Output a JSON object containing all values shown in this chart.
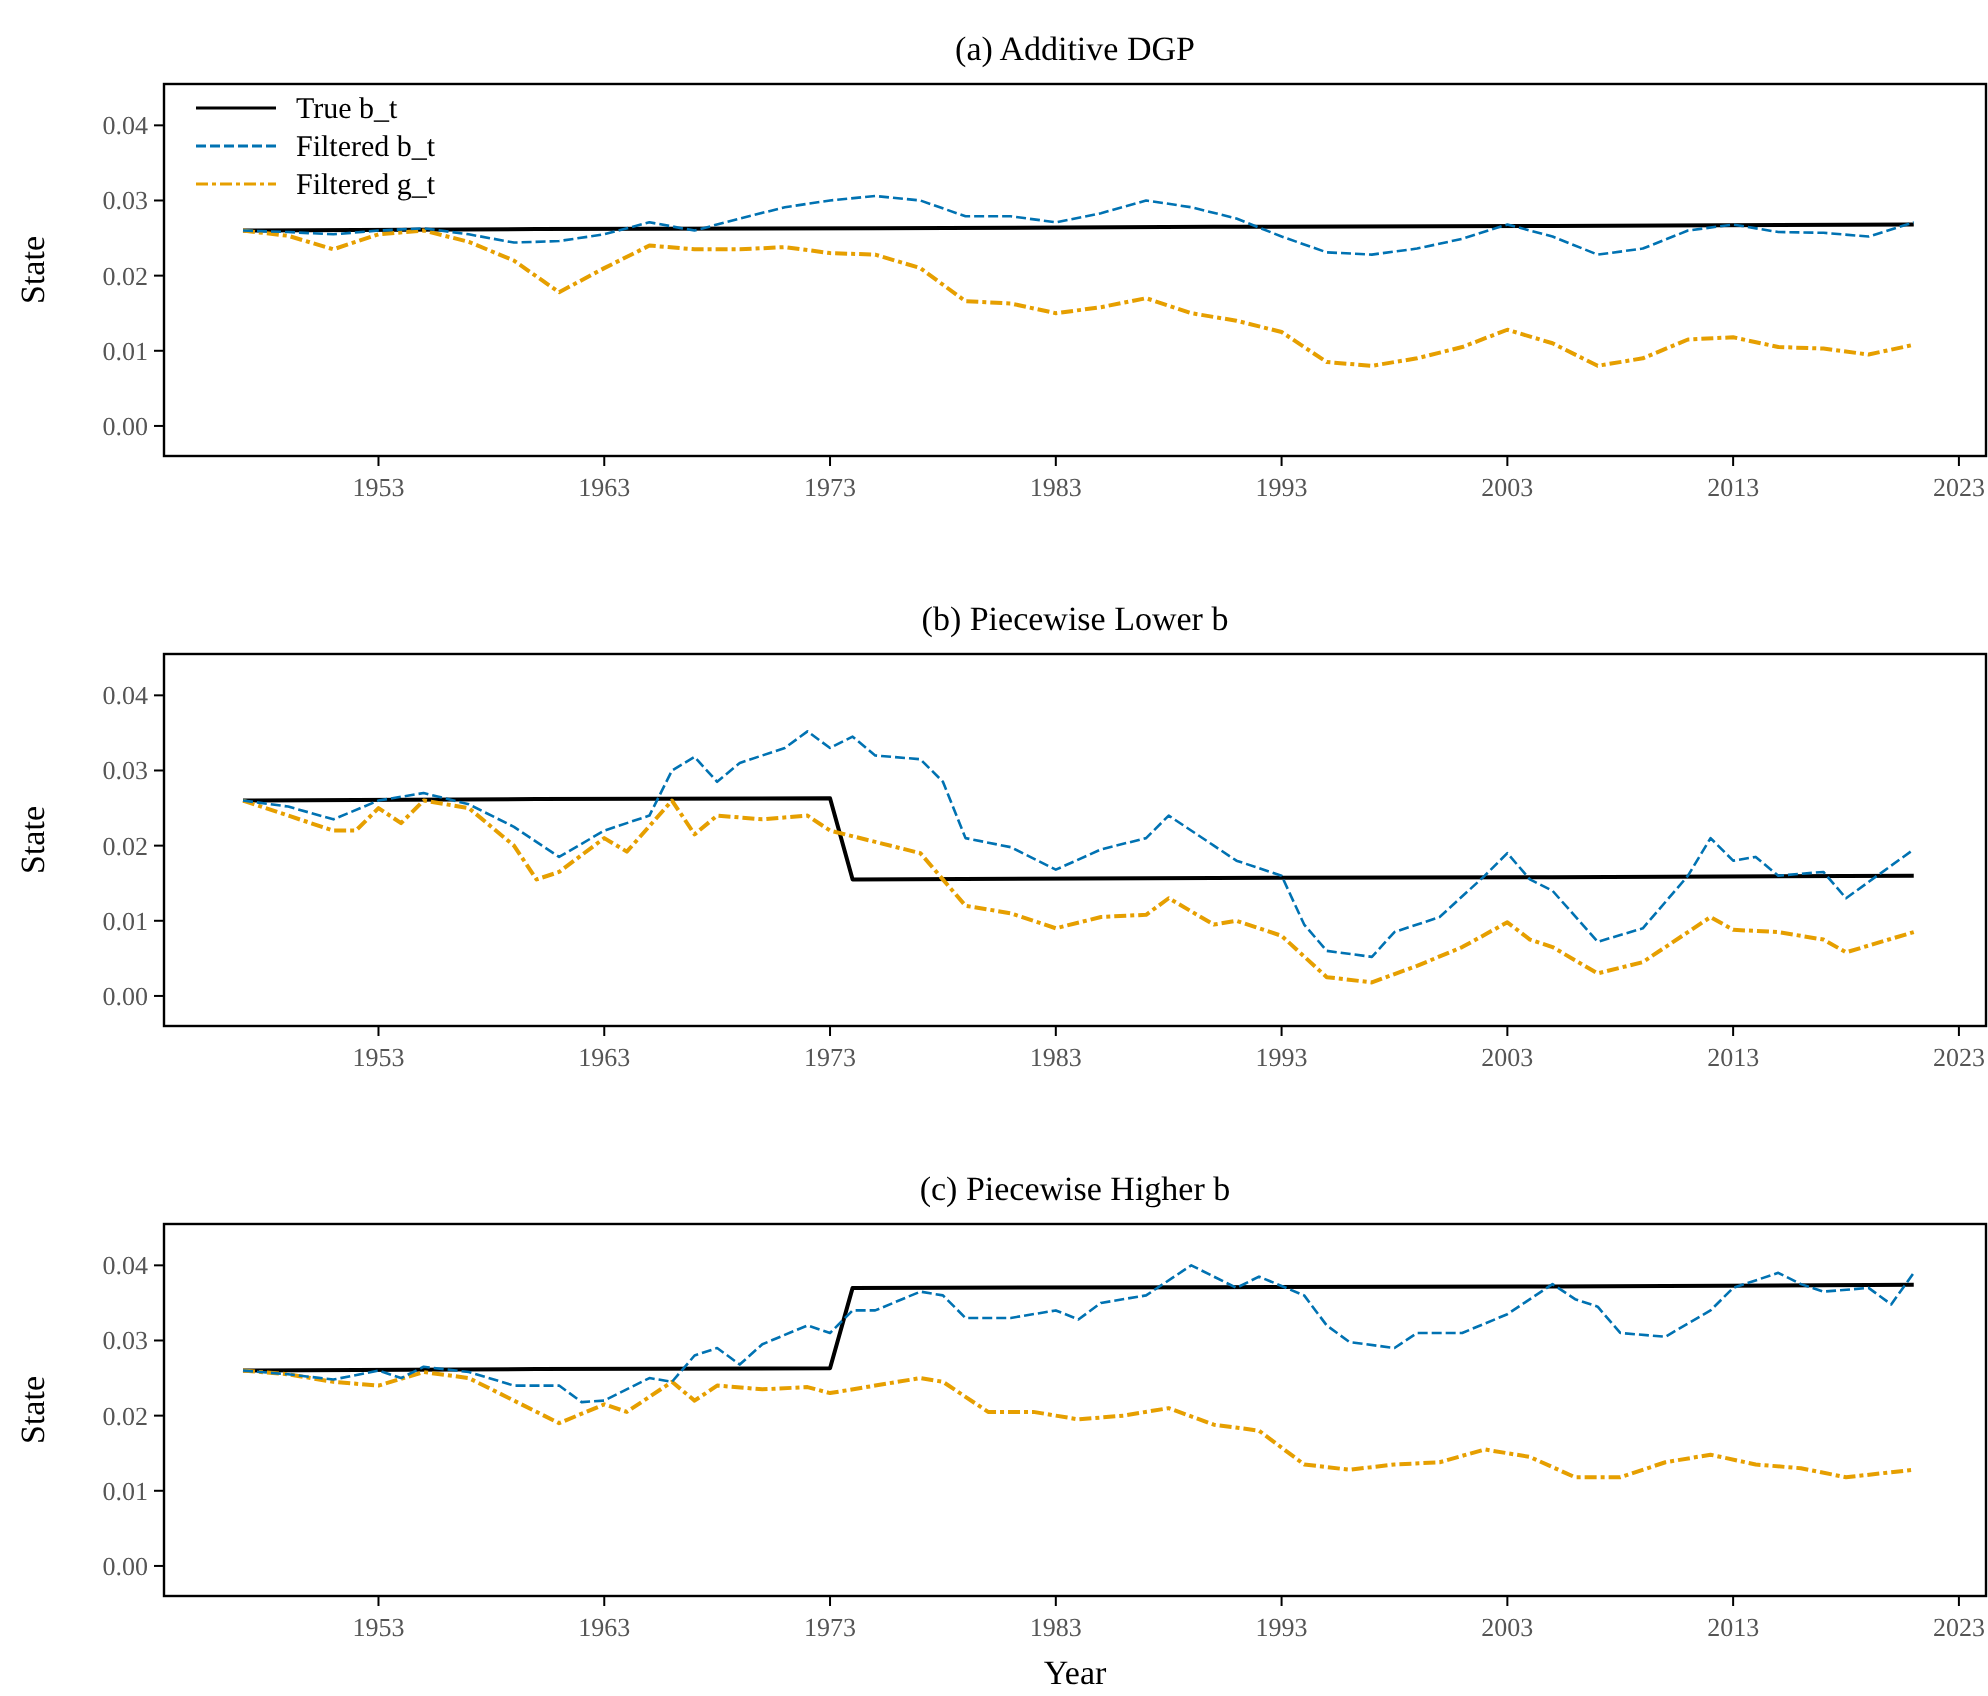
{
  "chart_data": [
    {
      "type": "line",
      "title": "(a) Additive DGP",
      "ylabel": "State",
      "xlim": [
        1943.5,
        2024.2
      ],
      "xticks": [
        1953,
        1963,
        1973,
        1983,
        1993,
        2003,
        2013,
        2023
      ],
      "ylim": [
        -0.004,
        0.0455
      ],
      "yticks": [
        {
          "value": 0,
          "label": "0.00"
        },
        {
          "value": 0.01,
          "label": "0.01"
        },
        {
          "value": 0.02,
          "label": "0.02"
        },
        {
          "value": 0.03,
          "label": "0.03"
        },
        {
          "value": 0.04,
          "label": "0.04"
        }
      ],
      "legend": "top left",
      "grid": false,
      "series": [
        {
          "name": "True b_t",
          "color": "#000000",
          "line_style": "solid",
          "x": [
            1947,
            1960,
            1975,
            1990,
            2005,
            2021
          ],
          "values": [
            0.026,
            0.0262,
            0.0263,
            0.0265,
            0.0266,
            0.0268
          ]
        },
        {
          "name": "Filtered b_t",
          "color": "#0072b2",
          "line_style": "dashed",
          "x": [
            1947,
            1949,
            1951,
            1953,
            1955,
            1957,
            1959,
            1961,
            1963,
            1965,
            1967,
            1969,
            1971,
            1973,
            1975,
            1977,
            1979,
            1981,
            1983,
            1985,
            1987,
            1989,
            1991,
            1993,
            1995,
            1997,
            1999,
            2001,
            2003,
            2005,
            2007,
            2009,
            2011,
            2013,
            2015,
            2017,
            2019,
            2021
          ],
          "values": [
            0.026,
            0.0258,
            0.0255,
            0.026,
            0.0263,
            0.0255,
            0.0244,
            0.0246,
            0.0255,
            0.0271,
            0.026,
            0.0276,
            0.0291,
            0.03,
            0.0306,
            0.03,
            0.0279,
            0.0279,
            0.0271,
            0.0283,
            0.03,
            0.0291,
            0.0276,
            0.0252,
            0.0231,
            0.0228,
            0.0236,
            0.0249,
            0.0268,
            0.0252,
            0.0228,
            0.0236,
            0.026,
            0.0268,
            0.0258,
            0.0257,
            0.0252,
            0.0271
          ]
        },
        {
          "name": "Filtered g_t",
          "color": "#e69f00",
          "line_style": "dashdot",
          "x": [
            1947,
            1949,
            1951,
            1953,
            1955,
            1957,
            1959,
            1961,
            1963,
            1965,
            1967,
            1969,
            1971,
            1973,
            1975,
            1977,
            1979,
            1981,
            1983,
            1985,
            1987,
            1989,
            1991,
            1993,
            1995,
            1997,
            1999,
            2001,
            2003,
            2005,
            2007,
            2009,
            2011,
            2013,
            2015,
            2017,
            2019,
            2021
          ],
          "values": [
            0.026,
            0.0253,
            0.0235,
            0.0255,
            0.026,
            0.0245,
            0.022,
            0.0178,
            0.021,
            0.024,
            0.0235,
            0.0235,
            0.0238,
            0.023,
            0.0228,
            0.021,
            0.0166,
            0.0163,
            0.015,
            0.0158,
            0.017,
            0.015,
            0.014,
            0.0125,
            0.0085,
            0.008,
            0.009,
            0.0105,
            0.0128,
            0.011,
            0.008,
            0.009,
            0.0115,
            0.0118,
            0.0105,
            0.0103,
            0.0095,
            0.0108
          ]
        }
      ]
    },
    {
      "type": "line",
      "title": "(b) Piecewise Lower b",
      "ylabel": "State",
      "xlim": [
        1943.5,
        2024.2
      ],
      "xticks": [
        1953,
        1963,
        1973,
        1983,
        1993,
        2003,
        2013,
        2023
      ],
      "ylim": [
        -0.004,
        0.0455
      ],
      "yticks": [
        {
          "value": 0,
          "label": "0.00"
        },
        {
          "value": 0.01,
          "label": "0.01"
        },
        {
          "value": 0.02,
          "label": "0.02"
        },
        {
          "value": 0.03,
          "label": "0.03"
        },
        {
          "value": 0.04,
          "label": "0.04"
        }
      ],
      "grid": false,
      "series": [
        {
          "color": "#000000",
          "line_style": "solid",
          "x": [
            1947,
            1960,
            1973,
            1974,
            1990,
            2005,
            2021
          ],
          "values": [
            0.026,
            0.0262,
            0.0263,
            0.0155,
            0.0157,
            0.0158,
            0.016
          ]
        },
        {
          "color": "#0072b2",
          "line_style": "dashed",
          "x": [
            1947,
            1949,
            1951,
            1953,
            1955,
            1957,
            1959,
            1961,
            1963,
            1965,
            1966,
            1967,
            1968,
            1969,
            1971,
            1972,
            1973,
            1974,
            1975,
            1977,
            1978,
            1979,
            1981,
            1983,
            1985,
            1987,
            1988,
            1990,
            1991,
            1993,
            1994,
            1995,
            1997,
            1998,
            2000,
            2002,
            2003,
            2004,
            2005,
            2007,
            2009,
            2011,
            2012,
            2013,
            2014,
            2015,
            2017,
            2018,
            2021
          ],
          "values": [
            0.026,
            0.0252,
            0.0235,
            0.026,
            0.027,
            0.0255,
            0.0225,
            0.0185,
            0.022,
            0.024,
            0.03,
            0.0318,
            0.0285,
            0.031,
            0.033,
            0.0352,
            0.033,
            0.0345,
            0.032,
            0.0315,
            0.0285,
            0.021,
            0.0198,
            0.0168,
            0.0195,
            0.021,
            0.024,
            0.02,
            0.018,
            0.016,
            0.0095,
            0.006,
            0.0052,
            0.0085,
            0.0105,
            0.016,
            0.019,
            0.0155,
            0.014,
            0.0072,
            0.009,
            0.016,
            0.021,
            0.018,
            0.0185,
            0.016,
            0.0165,
            0.013,
            0.0195
          ]
        },
        {
          "color": "#e69f00",
          "line_style": "dashdot",
          "x": [
            1947,
            1949,
            1951,
            1952,
            1953,
            1954,
            1955,
            1957,
            1959,
            1960,
            1961,
            1963,
            1964,
            1966,
            1967,
            1968,
            1970,
            1972,
            1973,
            1975,
            1977,
            1979,
            1981,
            1983,
            1985,
            1987,
            1988,
            1990,
            1991,
            1993,
            1995,
            1997,
            1999,
            2001,
            2003,
            2004,
            2005,
            2007,
            2009,
            2011,
            2012,
            2013,
            2015,
            2017,
            2018,
            2021
          ],
          "values": [
            0.026,
            0.024,
            0.022,
            0.022,
            0.025,
            0.023,
            0.026,
            0.025,
            0.02,
            0.0155,
            0.0165,
            0.021,
            0.0192,
            0.026,
            0.0215,
            0.024,
            0.0235,
            0.024,
            0.022,
            0.0205,
            0.019,
            0.012,
            0.011,
            0.009,
            0.0105,
            0.0108,
            0.013,
            0.0095,
            0.01,
            0.008,
            0.0025,
            0.0018,
            0.004,
            0.0065,
            0.0098,
            0.0075,
            0.0065,
            0.003,
            0.0045,
            0.0085,
            0.0105,
            0.0088,
            0.0085,
            0.0075,
            0.0058,
            0.0085
          ]
        }
      ]
    },
    {
      "type": "line",
      "title": "(c) Piecewise Higher b",
      "xlabel": "Year",
      "ylabel": "State",
      "xlim": [
        1943.5,
        2024.2
      ],
      "xticks": [
        1953,
        1963,
        1973,
        1983,
        1993,
        2003,
        2013,
        2023
      ],
      "ylim": [
        -0.004,
        0.0455
      ],
      "yticks": [
        {
          "value": 0,
          "label": "0.00"
        },
        {
          "value": 0.01,
          "label": "0.01"
        },
        {
          "value": 0.02,
          "label": "0.02"
        },
        {
          "value": 0.03,
          "label": "0.03"
        },
        {
          "value": 0.04,
          "label": "0.04"
        }
      ],
      "grid": false,
      "series": [
        {
          "color": "#000000",
          "line_style": "solid",
          "x": [
            1947,
            1960,
            1973,
            1974,
            1990,
            2005,
            2021
          ],
          "values": [
            0.026,
            0.0262,
            0.0263,
            0.037,
            0.0371,
            0.0372,
            0.0374
          ]
        },
        {
          "color": "#0072b2",
          "line_style": "dashed",
          "x": [
            1947,
            1949,
            1951,
            1953,
            1954,
            1955,
            1957,
            1959,
            1961,
            1962,
            1963,
            1965,
            1966,
            1967,
            1968,
            1969,
            1970,
            1972,
            1973,
            1974,
            1975,
            1977,
            1978,
            1979,
            1981,
            1983,
            1984,
            1985,
            1987,
            1989,
            1991,
            1992,
            1994,
            1995,
            1996,
            1998,
            1999,
            2001,
            2003,
            2005,
            2006,
            2007,
            2008,
            2010,
            2012,
            2013,
            2015,
            2016,
            2017,
            2019,
            2020,
            2021
          ],
          "values": [
            0.026,
            0.0255,
            0.0248,
            0.026,
            0.025,
            0.0265,
            0.0258,
            0.024,
            0.024,
            0.0218,
            0.022,
            0.025,
            0.0245,
            0.028,
            0.029,
            0.0268,
            0.0295,
            0.032,
            0.031,
            0.034,
            0.034,
            0.0365,
            0.036,
            0.033,
            0.033,
            0.034,
            0.0328,
            0.035,
            0.036,
            0.04,
            0.037,
            0.0385,
            0.036,
            0.032,
            0.0298,
            0.029,
            0.031,
            0.031,
            0.0335,
            0.0375,
            0.0355,
            0.0345,
            0.031,
            0.0305,
            0.034,
            0.037,
            0.039,
            0.0375,
            0.0365,
            0.037,
            0.0348,
            0.039
          ]
        },
        {
          "color": "#e69f00",
          "line_style": "dashdot",
          "x": [
            1947,
            1949,
            1951,
            1953,
            1955,
            1957,
            1959,
            1961,
            1963,
            1964,
            1966,
            1967,
            1968,
            1970,
            1972,
            1973,
            1975,
            1977,
            1978,
            1980,
            1982,
            1984,
            1986,
            1988,
            1990,
            1992,
            1994,
            1996,
            1998,
            2000,
            2002,
            2004,
            2006,
            2008,
            2010,
            2012,
            2014,
            2016,
            2018,
            2021
          ],
          "values": [
            0.026,
            0.0255,
            0.0245,
            0.024,
            0.0258,
            0.025,
            0.022,
            0.019,
            0.0215,
            0.0205,
            0.0245,
            0.022,
            0.024,
            0.0235,
            0.0238,
            0.023,
            0.024,
            0.025,
            0.0245,
            0.0205,
            0.0205,
            0.0195,
            0.02,
            0.021,
            0.0188,
            0.018,
            0.0135,
            0.0128,
            0.0135,
            0.0138,
            0.0155,
            0.0145,
            0.0118,
            0.0118,
            0.0138,
            0.0148,
            0.0135,
            0.013,
            0.0118,
            0.0128
          ]
        }
      ]
    }
  ]
}
